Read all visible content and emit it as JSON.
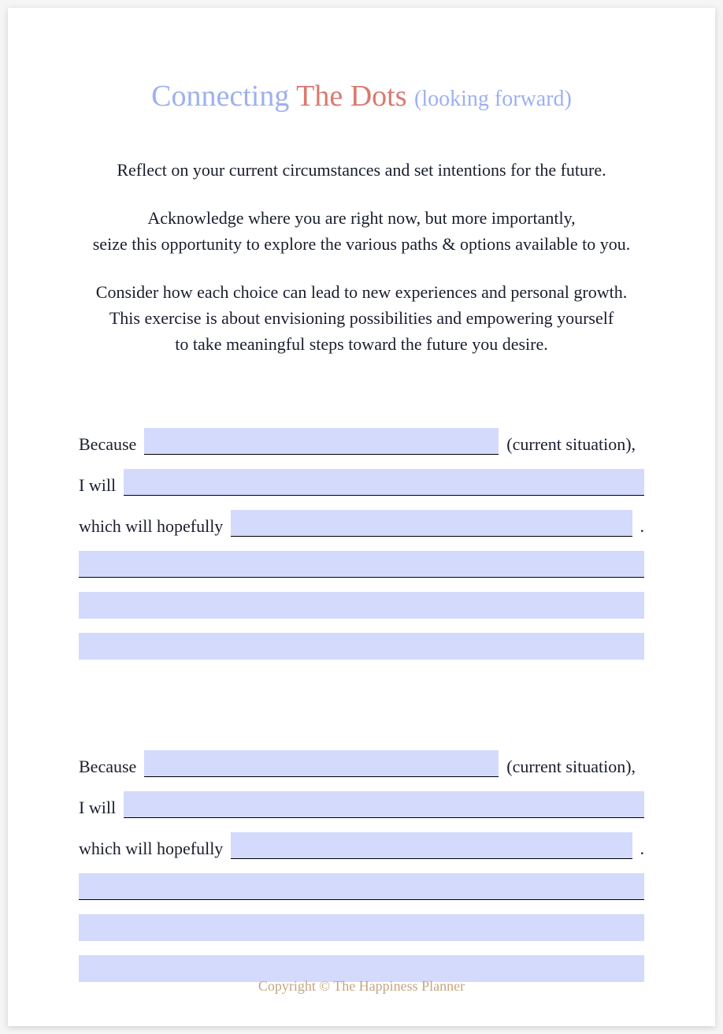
{
  "title": {
    "word1": "Connecting ",
    "word2": "The Dots ",
    "sub": "(looking forward)"
  },
  "intro": {
    "p1": "Reflect on your current circumstances and set intentions for the future.",
    "p2a": "Acknowledge where you are right now, but more importantly,",
    "p2b": "seize this opportunity to explore the various paths & options available to you.",
    "p3a": "Consider how each choice can lead to new experiences and personal growth.",
    "p3b": "This exercise is about envisioning possibilities and empowering yourself",
    "p3c": "to take meaningful steps toward the future you desire."
  },
  "labels": {
    "because": "Because",
    "current": "(current situation),",
    "iwill": "I will",
    "which": "which will hopefully",
    "period": "."
  },
  "footer": "Copyright ©  The Happiness Planner",
  "colors": {
    "title_blue": "#9db0f0",
    "title_coral": "#d97a6f",
    "fill_bg": "#d3dafc",
    "text": "#1a1d2e",
    "footer": "#c4a582",
    "page_bg": "#ffffff"
  }
}
